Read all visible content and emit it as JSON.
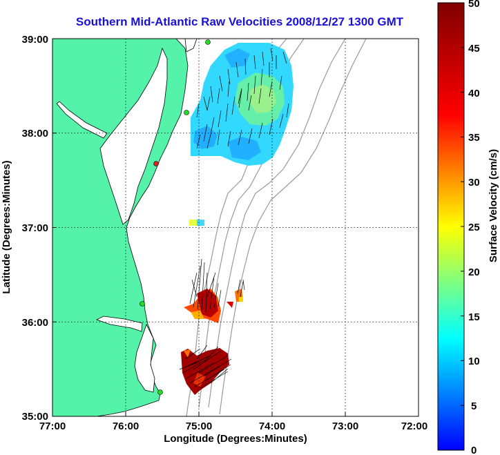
{
  "title": "Southern Mid-Atlantic Raw Velocities 2008/12/27 1300 GMT",
  "map": {
    "xlabel": "Longitude (Degrees:Minutes)",
    "ylabel": "Latitude (Degrees:Minutes)",
    "x_ticks": [
      "77:00",
      "76:00",
      "75:00",
      "74:00",
      "73:00",
      "72:00"
    ],
    "y_ticks": [
      "39:00",
      "38:00",
      "37:00",
      "36:00",
      "35:00"
    ],
    "land_color": "#55f3aa",
    "grid": "dotted"
  },
  "colorbar": {
    "label": "Surface Velocity (cm/s)",
    "min": 0,
    "max": 50,
    "ticks": [
      "50",
      "45",
      "40",
      "35",
      "30",
      "25",
      "20",
      "15",
      "10",
      "5",
      "0"
    ],
    "colormap": "jet"
  }
}
